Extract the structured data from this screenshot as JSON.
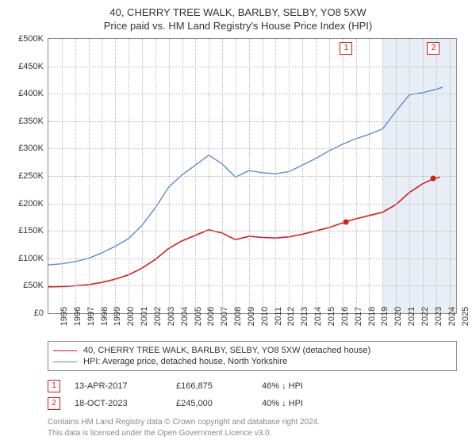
{
  "title": "40, CHERRY TREE WALK, BARLBY, SELBY, YO8 5XW",
  "subtitle": "Price paid vs. HM Land Registry's House Price Index (HPI)",
  "chart": {
    "type": "line",
    "background_color": "#ffffff",
    "grid_color": "#bbbbbb",
    "border_color": "#888888",
    "x": {
      "min": 1995,
      "max": 2025.5,
      "ticks": [
        1995,
        1996,
        1997,
        1998,
        1999,
        2000,
        2001,
        2002,
        2003,
        2004,
        2005,
        2006,
        2007,
        2008,
        2009,
        2010,
        2011,
        2012,
        2013,
        2014,
        2015,
        2016,
        2017,
        2018,
        2019,
        2020,
        2021,
        2022,
        2023,
        2024,
        2025
      ],
      "label_fontsize": 11
    },
    "y": {
      "min": 0,
      "max": 500000,
      "tick_step": 50000,
      "tick_labels": [
        "£0",
        "£50K",
        "£100K",
        "£150K",
        "£200K",
        "£250K",
        "£300K",
        "£350K",
        "£400K",
        "£450K",
        "£500K"
      ],
      "label_fontsize": 11
    },
    "shaded_bands": [
      {
        "from": 2020,
        "to": 2025.5,
        "color": "#e8eef6"
      }
    ],
    "series": [
      {
        "id": "property",
        "label": "40, CHERRY TREE WALK, BARLBY, SELBY, YO8 5XW (detached house)",
        "color": "#d81b1b",
        "line_width": 1.6,
        "points": [
          [
            1995,
            48000
          ],
          [
            1996,
            48500
          ],
          [
            1997,
            50000
          ],
          [
            1998,
            52000
          ],
          [
            1999,
            56000
          ],
          [
            2000,
            62000
          ],
          [
            2001,
            70000
          ],
          [
            2002,
            82000
          ],
          [
            2003,
            98000
          ],
          [
            2004,
            118000
          ],
          [
            2005,
            132000
          ],
          [
            2006,
            142000
          ],
          [
            2007,
            152000
          ],
          [
            2008,
            146000
          ],
          [
            2009,
            134000
          ],
          [
            2010,
            140000
          ],
          [
            2011,
            138000
          ],
          [
            2012,
            137000
          ],
          [
            2013,
            139000
          ],
          [
            2014,
            144000
          ],
          [
            2015,
            150000
          ],
          [
            2016,
            156000
          ],
          [
            2017.28,
            166875
          ],
          [
            2018,
            172000
          ],
          [
            2019,
            178000
          ],
          [
            2020,
            184000
          ],
          [
            2021,
            198000
          ],
          [
            2022,
            220000
          ],
          [
            2023,
            236000
          ],
          [
            2023.8,
            245000
          ],
          [
            2024.3,
            248000
          ]
        ]
      },
      {
        "id": "hpi",
        "label": "HPI: Average price, detached house, North Yorkshire",
        "color": "#5b8bd0",
        "line_width": 1.4,
        "points": [
          [
            1995,
            88000
          ],
          [
            1996,
            90000
          ],
          [
            1997,
            94000
          ],
          [
            1998,
            100000
          ],
          [
            1999,
            110000
          ],
          [
            2000,
            122000
          ],
          [
            2001,
            136000
          ],
          [
            2002,
            160000
          ],
          [
            2003,
            192000
          ],
          [
            2004,
            230000
          ],
          [
            2005,
            252000
          ],
          [
            2006,
            270000
          ],
          [
            2007,
            288000
          ],
          [
            2008,
            272000
          ],
          [
            2009,
            248000
          ],
          [
            2010,
            260000
          ],
          [
            2011,
            256000
          ],
          [
            2012,
            254000
          ],
          [
            2013,
            258000
          ],
          [
            2014,
            270000
          ],
          [
            2015,
            282000
          ],
          [
            2016,
            296000
          ],
          [
            2017,
            308000
          ],
          [
            2018,
            318000
          ],
          [
            2019,
            326000
          ],
          [
            2020,
            336000
          ],
          [
            2021,
            368000
          ],
          [
            2022,
            398000
          ],
          [
            2023,
            402000
          ],
          [
            2024,
            408000
          ],
          [
            2024.5,
            412000
          ]
        ]
      }
    ],
    "sale_markers": [
      {
        "n": "1",
        "x": 2017.28,
        "y": 166875,
        "color": "#d81b1b"
      },
      {
        "n": "2",
        "x": 2023.8,
        "y": 245000,
        "color": "#d81b1b"
      }
    ]
  },
  "legend": {
    "items": [
      {
        "series": "property"
      },
      {
        "series": "hpi"
      }
    ]
  },
  "sales": [
    {
      "n": "1",
      "date": "13-APR-2017",
      "price": "£166,875",
      "diff": "46% ↓ HPI",
      "color": "#d81b1b"
    },
    {
      "n": "2",
      "date": "18-OCT-2023",
      "price": "£245,000",
      "diff": "40% ↓ HPI",
      "color": "#d81b1b"
    }
  ],
  "footnote_l1": "Contains HM Land Registry data © Crown copyright and database right 2024.",
  "footnote_l2": "This data is licensed under the Open Government Licence v3.0."
}
